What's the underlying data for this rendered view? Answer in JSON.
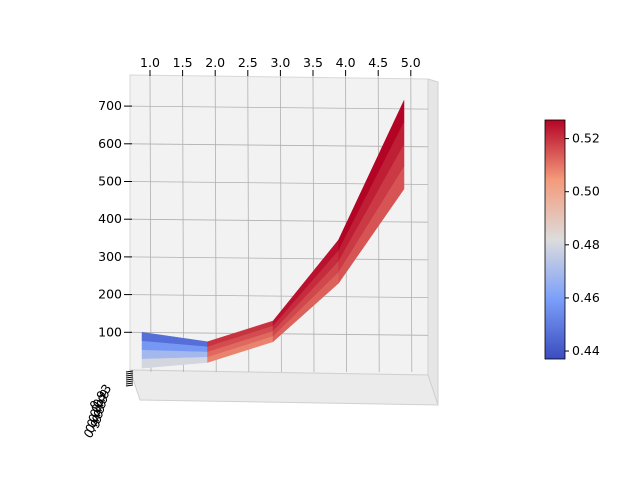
{
  "chart_data": {
    "type": "surface-3d",
    "title": "",
    "xlabel": "",
    "ylabel": "",
    "zlabel": "",
    "x_ticks": [
      "1.0",
      "1.5",
      "2.0",
      "2.5",
      "3.0",
      "3.5",
      "4.0",
      "4.5",
      "5.0"
    ],
    "z_ticks": [
      "100",
      "200",
      "300",
      "400",
      "500",
      "600",
      "700"
    ],
    "y_ticks_overlapping": [
      "0.93",
      "0.9",
      "0.9",
      "0.9",
      "0.9",
      "0.9",
      "0.9",
      "0.9"
    ],
    "colorbar": {
      "colormap": "coolwarm",
      "range": [
        0.437,
        0.527
      ],
      "ticks": [
        "0.44",
        "0.46",
        "0.48",
        "0.50",
        "0.52"
      ]
    },
    "series": [
      {
        "x": 1,
        "z_low": 5,
        "z_high": 100,
        "color_value": 0.44
      },
      {
        "x": 2,
        "z_low": 20,
        "z_high": 75,
        "color_value": 0.52
      },
      {
        "x": 3,
        "z_low": 75,
        "z_high": 130,
        "color_value": 0.52
      },
      {
        "x": 4,
        "z_low": 230,
        "z_high": 345,
        "color_value": 0.525
      },
      {
        "x": 5,
        "z_low": 480,
        "z_high": 715,
        "color_value": 0.527
      }
    ],
    "grid": true,
    "colorbar_position": "right"
  }
}
